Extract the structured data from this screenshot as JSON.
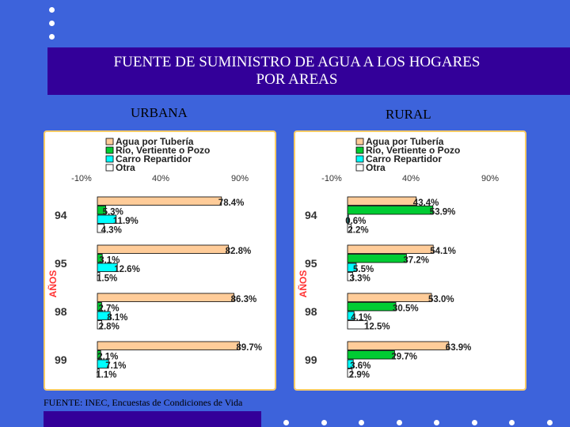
{
  "title": "FUENTE DE SUMINISTRO DE AGUA A LOS HOGARES\nPOR AREAS",
  "source": "FUENTE: INEC, Encuestas de Condiciones de Vida",
  "colors": {
    "background": "#3d63db",
    "band": "#330099",
    "panel_border": "#ffcc66",
    "agua": "#ffcc99",
    "rio": "#00cc33",
    "carro": "#00ffff",
    "otra": "#ffffff"
  },
  "chart_data": [
    {
      "type": "bar",
      "orientation": "horizontal",
      "title": "URBANA",
      "ylabel": "AÑOS",
      "xlim": [
        -10,
        90
      ],
      "x_ticks": [
        "-10%",
        "40%",
        "90%"
      ],
      "categories": [
        "94",
        "95",
        "98",
        "99"
      ],
      "series": [
        {
          "name": "Agua por Tubería",
          "color": "#ffcc99",
          "values": [
            78.4,
            82.8,
            86.3,
            89.7
          ],
          "labels": [
            "78.4%",
            "82.8%",
            "86.3%",
            "89.7%"
          ]
        },
        {
          "name": "Río, Vertiente o Pozo",
          "color": "#00cc33",
          "values": [
            5.3,
            3.1,
            2.7,
            2.1
          ],
          "labels": [
            "5.3%",
            "3.1%",
            "2.7%",
            "2.1%"
          ]
        },
        {
          "name": "Carro Repartidor",
          "color": "#00ffff",
          "values": [
            11.9,
            12.6,
            8.1,
            7.1
          ],
          "labels": [
            "11.9%",
            "12.6%",
            "8.1%",
            "7.1%"
          ]
        },
        {
          "name": "Otra",
          "color": "#ffffff",
          "values": [
            4.3,
            1.5,
            2.8,
            1.1
          ],
          "labels": [
            "4.3%",
            "1.5%",
            "2.8%",
            "1.1%"
          ]
        }
      ],
      "legend_position": "top"
    },
    {
      "type": "bar",
      "orientation": "horizontal",
      "title": "RURAL",
      "ylabel": "AÑOS",
      "xlim": [
        -10,
        90
      ],
      "x_ticks": [
        "-10%",
        "40%",
        "90%"
      ],
      "categories": [
        "94",
        "95",
        "98",
        "99"
      ],
      "series": [
        {
          "name": "Agua por Tubería",
          "color": "#ffcc99",
          "values": [
            43.4,
            54.1,
            53.0,
            63.9
          ],
          "labels": [
            "43.4%",
            "54.1%",
            "53.0%",
            "63.9%"
          ]
        },
        {
          "name": "Río, Vertiente o Pozo",
          "color": "#00cc33",
          "values": [
            53.9,
            37.2,
            30.5,
            29.7
          ],
          "labels": [
            "53.9%",
            "37.2%",
            "30.5%",
            "29.7%"
          ]
        },
        {
          "name": "Carro Repartidor",
          "color": "#00ffff",
          "values": [
            0.6,
            5.5,
            4.1,
            3.6
          ],
          "labels": [
            "0.6%",
            "5.5%",
            "4.1%",
            "3.6%"
          ]
        },
        {
          "name": "Otra",
          "color": "#ffffff",
          "values": [
            2.2,
            3.3,
            12.5,
            2.9
          ],
          "labels": [
            "2.2%",
            "3.3%",
            "12.5%",
            "2.9%"
          ]
        }
      ],
      "legend_position": "top"
    }
  ]
}
